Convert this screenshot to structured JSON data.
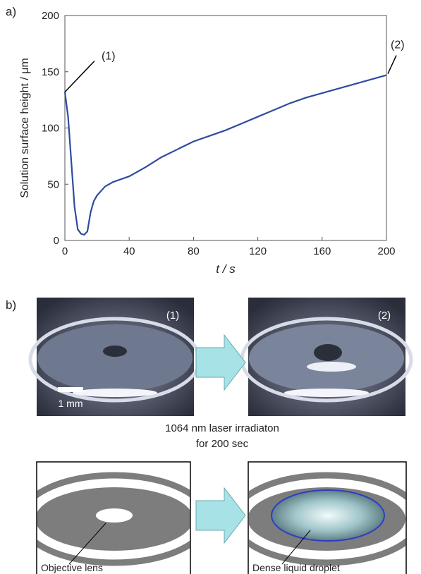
{
  "panel_labels": [
    "a)",
    "b)"
  ],
  "chart_data": {
    "type": "line",
    "xlabel": "t / s",
    "ylabel": "Solution surface height / μm",
    "x": [
      0,
      2,
      4,
      6,
      8,
      10,
      12,
      14,
      16,
      18,
      20,
      25,
      30,
      40,
      50,
      60,
      70,
      80,
      90,
      100,
      110,
      120,
      130,
      140,
      150,
      160,
      170,
      180,
      190,
      200
    ],
    "series": [
      {
        "color": "#2f4ba0",
        "values": [
          132,
          110,
          70,
          30,
          10,
          6,
          5,
          8,
          25,
          35,
          40,
          48,
          52,
          57,
          65,
          74,
          81,
          88,
          93,
          98,
          104,
          110,
          116,
          122,
          127,
          131,
          135,
          139,
          143,
          147
        ]
      }
    ],
    "xlim": [
      0,
      200
    ],
    "xticks": [
      0,
      40,
      80,
      120,
      160,
      200
    ],
    "ylim": [
      0,
      200
    ],
    "yticks": [
      0,
      50,
      100,
      150,
      200
    ],
    "annotations": [
      "(1)",
      "(2)"
    ]
  },
  "photos": [
    {
      "label": "(1)",
      "scale_bar": "1 mm"
    },
    {
      "label": "(2)"
    }
  ],
  "caption": [
    "1064 nm laser irradiaton",
    "for 200 sec"
  ],
  "diagrams": [
    {
      "label": "Objective lens"
    },
    {
      "label": "Dense liquid droplet"
    }
  ]
}
